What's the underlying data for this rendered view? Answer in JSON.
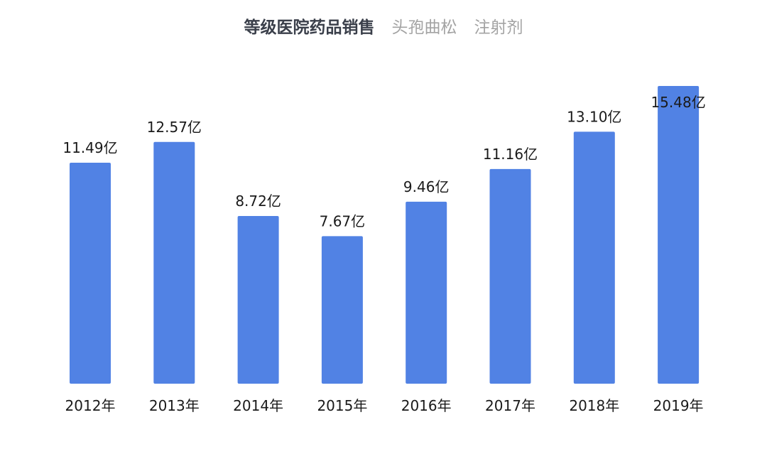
{
  "chart_data": {
    "type": "bar",
    "title": "等级医院药品销售",
    "subtitles": [
      "头孢曲松",
      "注射剂"
    ],
    "categories": [
      "2012年",
      "2013年",
      "2014年",
      "2015年",
      "2016年",
      "2017年",
      "2018年",
      "2019年"
    ],
    "values": [
      11.49,
      12.57,
      8.72,
      7.67,
      9.46,
      11.16,
      13.1,
      15.48
    ],
    "value_labels": [
      "11.49亿",
      "12.57亿",
      "8.72亿",
      "7.67亿",
      "9.46亿",
      "11.16亿",
      "13.10亿",
      "15.48亿"
    ],
    "xlabel": "",
    "ylabel": "",
    "ylim": [
      0,
      15.48
    ],
    "grid": false,
    "legend": "none",
    "bar_color": "#5182e4"
  }
}
